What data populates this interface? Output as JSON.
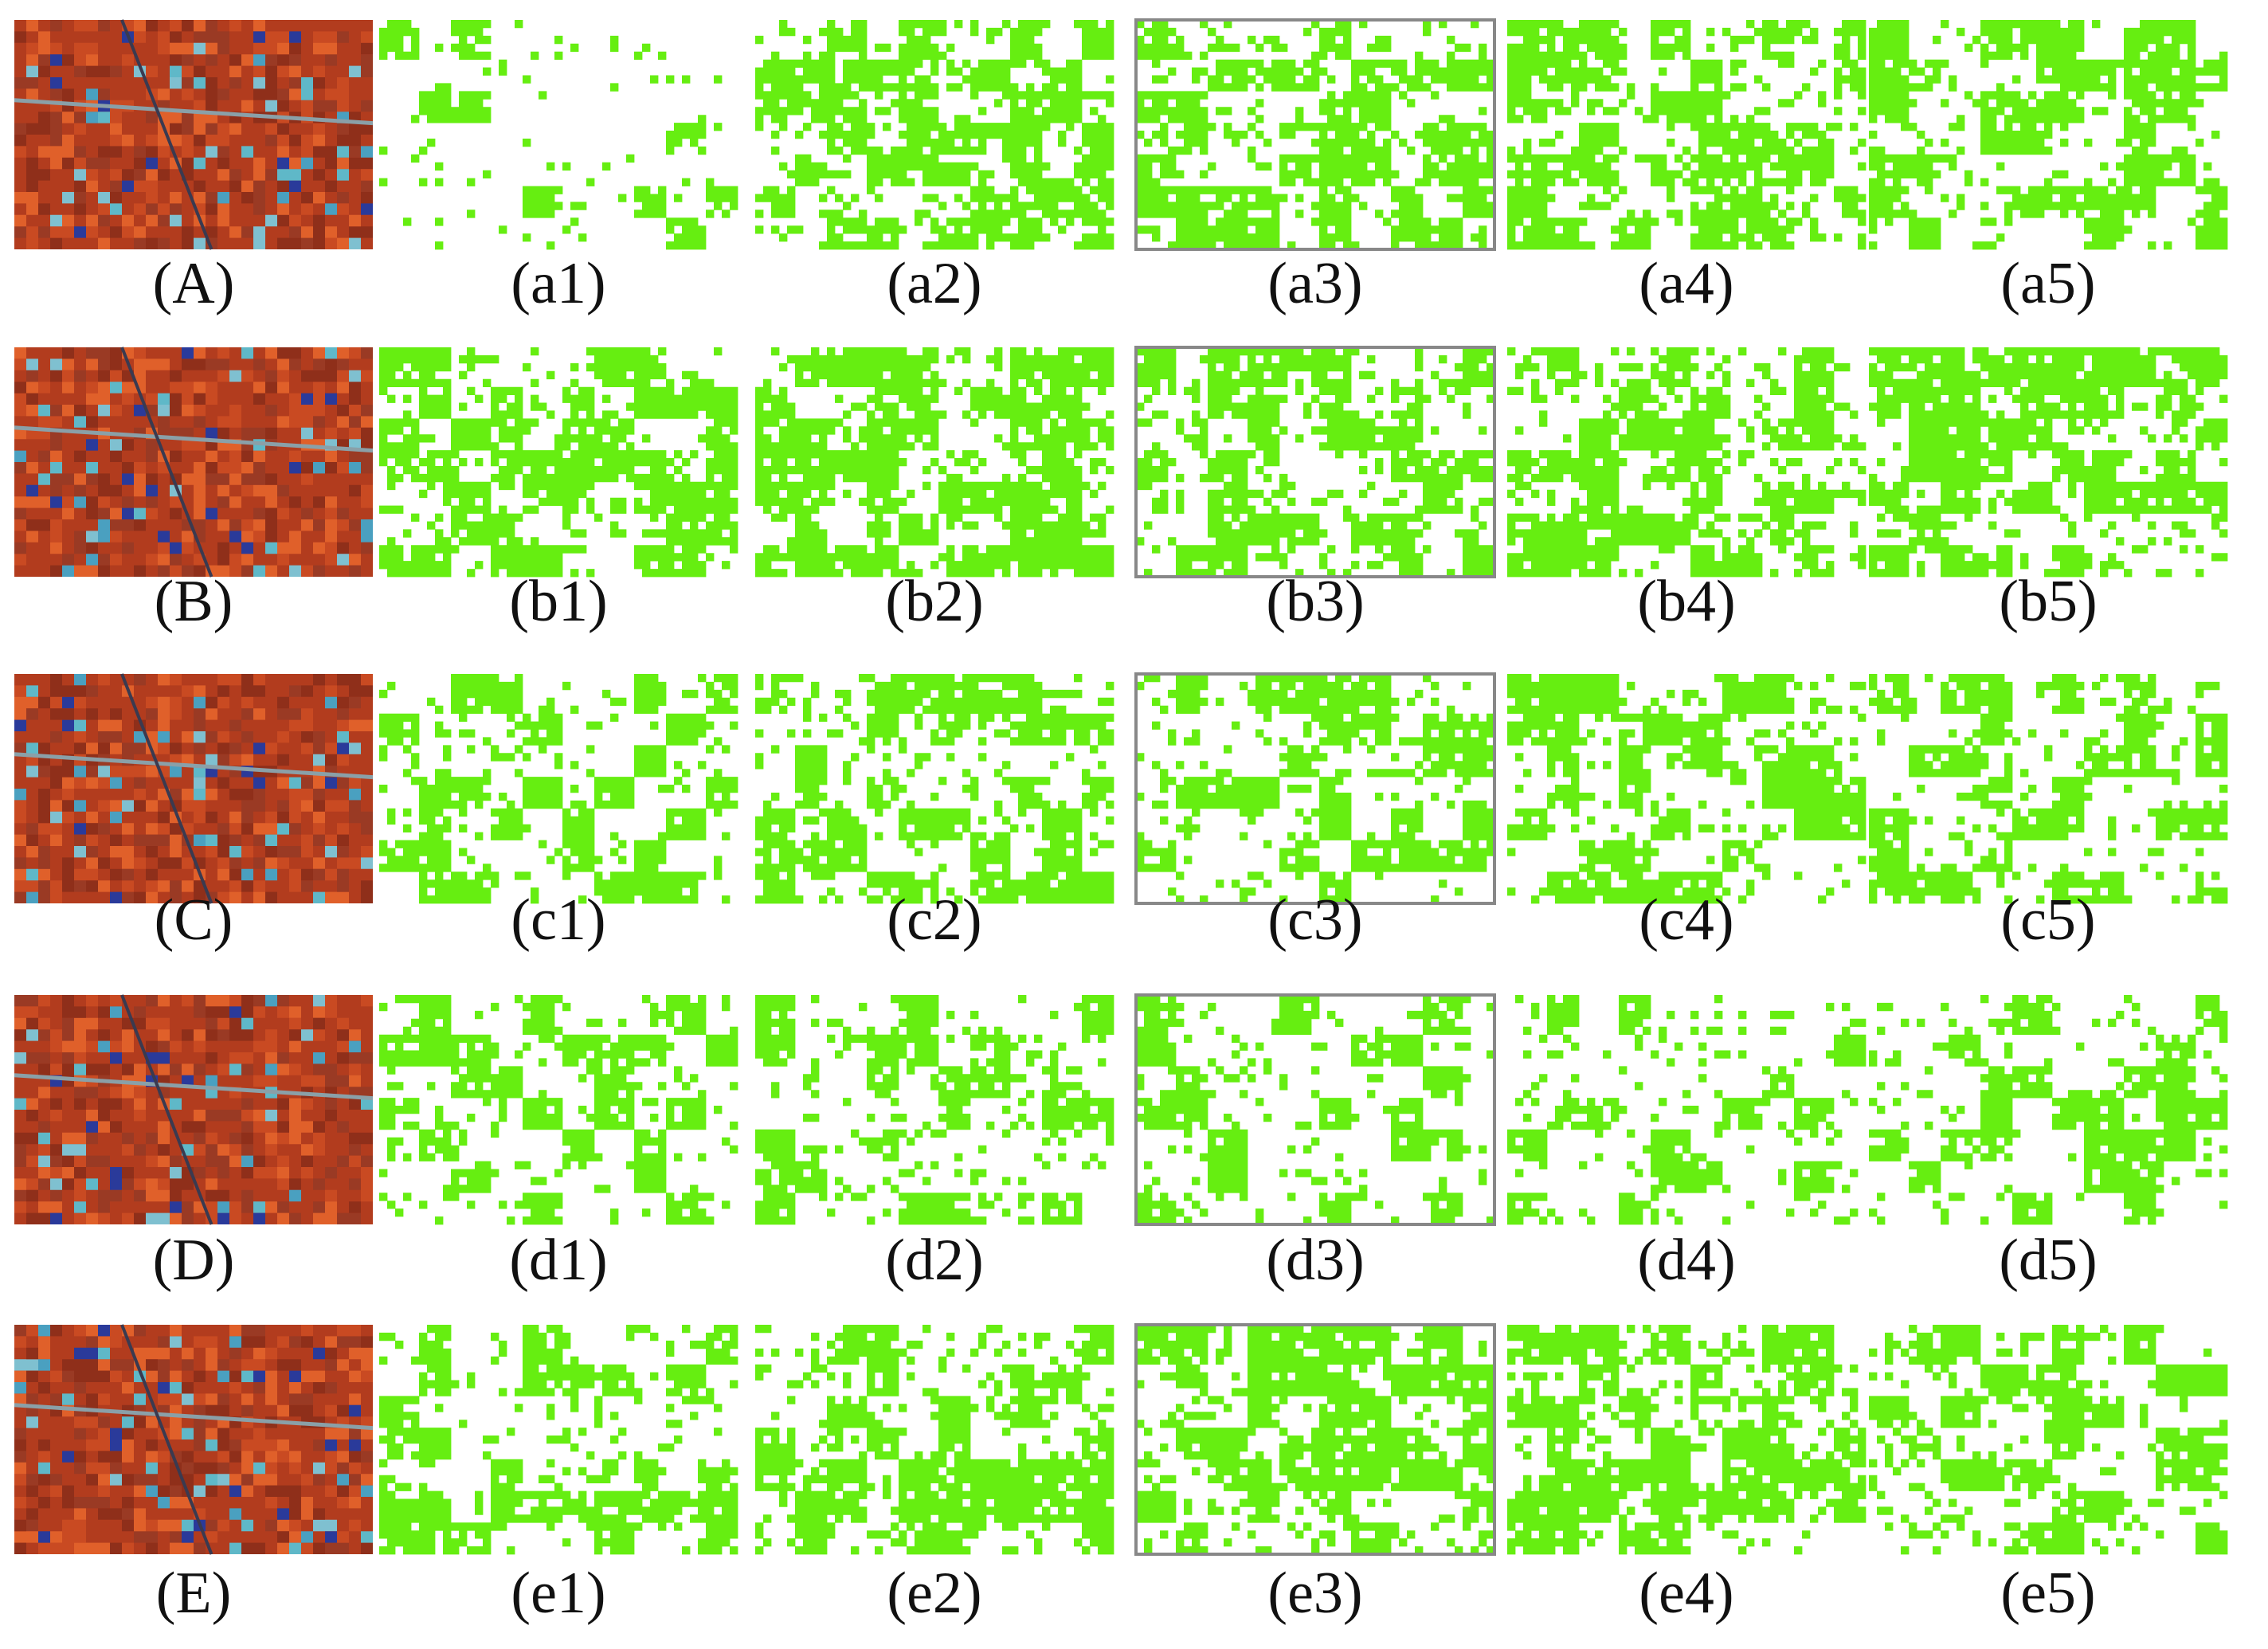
{
  "rows": [
    {
      "labels": [
        "(A)",
        "(a1)",
        "(a2)",
        "(a3)",
        "(a4)",
        "(a5)"
      ]
    },
    {
      "labels": [
        "(B)",
        "(b1)",
        "(b2)",
        "(b3)",
        "(b4)",
        "(b5)"
      ]
    },
    {
      "labels": [
        "(C)",
        "(c1)",
        "(c2)",
        "(c3)",
        "(c4)",
        "(c5)"
      ]
    },
    {
      "labels": [
        "(D)",
        "(d1)",
        "(d2)",
        "(d3)",
        "(d4)",
        "(d5)"
      ]
    },
    {
      "labels": [
        "(E)",
        "(e1)",
        "(e2)",
        "(e3)",
        "(e4)",
        "(e5)"
      ]
    }
  ]
}
